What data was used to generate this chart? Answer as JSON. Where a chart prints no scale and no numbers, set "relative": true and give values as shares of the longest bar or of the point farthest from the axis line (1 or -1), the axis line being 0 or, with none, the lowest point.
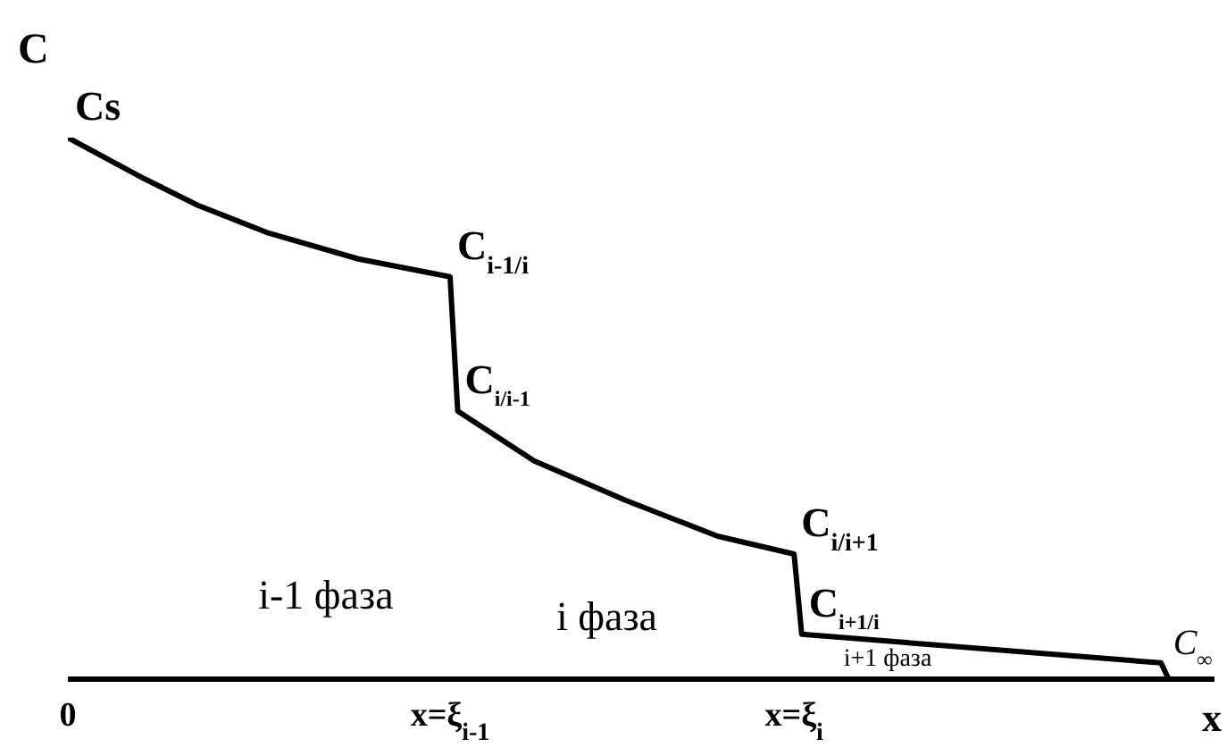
{
  "chart_data": {
    "type": "line",
    "relative": true,
    "xlabel": "x",
    "ylabel": "C",
    "categories": [
      "0",
      null,
      null,
      null,
      null,
      null,
      null,
      null,
      null,
      null,
      null,
      null,
      null,
      null,
      null,
      null,
      null,
      null,
      null,
      null,
      null,
      null,
      null,
      null,
      null,
      null,
      null,
      null,
      null,
      null,
      null,
      null,
      null,
      null,
      null,
      null,
      null,
      null,
      null,
      null,
      null,
      null,
      null,
      null,
      null,
      null,
      null,
      null,
      null,
      null,
      "x=ξ$_{i-1}$",
      null,
      null,
      null,
      null,
      null,
      null,
      null,
      null,
      null,
      null,
      null,
      null,
      null,
      null,
      null,
      null,
      null,
      null,
      null,
      null,
      null,
      null,
      null,
      null,
      null,
      null,
      null,
      null,
      null,
      null,
      null,
      null,
      null,
      null,
      null,
      null,
      null,
      null,
      null,
      null,
      null,
      null,
      null,
      null,
      "x=ξ$_{i}$",
      null,
      null,
      null,
      null,
      null,
      null,
      null,
      null,
      null,
      null,
      null,
      null,
      null,
      null,
      null,
      null,
      null,
      null,
      null,
      null,
      null,
      null,
      null,
      null,
      null,
      null,
      null,
      null,
      null,
      null,
      null,
      null,
      null,
      null,
      null,
      null,
      null,
      null,
      null,
      null,
      null,
      null,
      null,
      null,
      null,
      null,
      null,
      null,
      null,
      null,
      null,
      null,
      null,
      null,
      null
    ],
    "series": [
      {
        "color": "#000000",
        "values": [
          1,
          null,
          null,
          null,
          null,
          null,
          null,
          null,
          null,
          null,
          0.924,
          null,
          null,
          null,
          null,
          null,
          null,
          0.875,
          null,
          null,
          null,
          null,
          null,
          null,
          null,
          null,
          0.825,
          null,
          null,
          null,
          null,
          null,
          null,
          null,
          null,
          null,
          null,
          null,
          0.776,
          null,
          null,
          null,
          null,
          null,
          null,
          null,
          null,
          null,
          null,
          null,
          0.743,
          0.495,
          null,
          null,
          null,
          null,
          null,
          null,
          null,
          null,
          null,
          0.403,
          null,
          null,
          null,
          null,
          null,
          null,
          null,
          null,
          null,
          null,
          null,
          0.33,
          null,
          null,
          null,
          null,
          null,
          null,
          null,
          null,
          null,
          null,
          null,
          0.264,
          null,
          null,
          null,
          null,
          null,
          null,
          null,
          null,
          null,
          0.231,
          0.083,
          null,
          null,
          null,
          null,
          null,
          null,
          null,
          null,
          null,
          null,
          null,
          null,
          null,
          null,
          null,
          null,
          null,
          null,
          null,
          null,
          null,
          null,
          null,
          null,
          null,
          null,
          null,
          null,
          null,
          null,
          null,
          null,
          null,
          null,
          null,
          null,
          null,
          null,
          null,
          null,
          null,
          null,
          null,
          null,
          null,
          null,
          0.03,
          0,
          null,
          null,
          null,
          null,
          null,
          null
        ]
      }
    ],
    "annotations": [
      {
        "text": "Cs",
        "x": "0",
        "y": 1
      },
      {
        "text": "C$_{i-1/i}$",
        "x": "x=ξ$_{i-1}$",
        "y": 0.743
      },
      {
        "text": "C$_{i/i+1}$",
        "x": "x=ξ$_{i}$",
        "y": 0.231
      },
      "C$_{i/i-1}$",
      "C$_{i+1/i}$",
      "C$_{∞}$",
      "i-1 фаза",
      "i фаза",
      "i+1 фаза"
    ],
    "marker": "none",
    "line_style": "solid"
  }
}
